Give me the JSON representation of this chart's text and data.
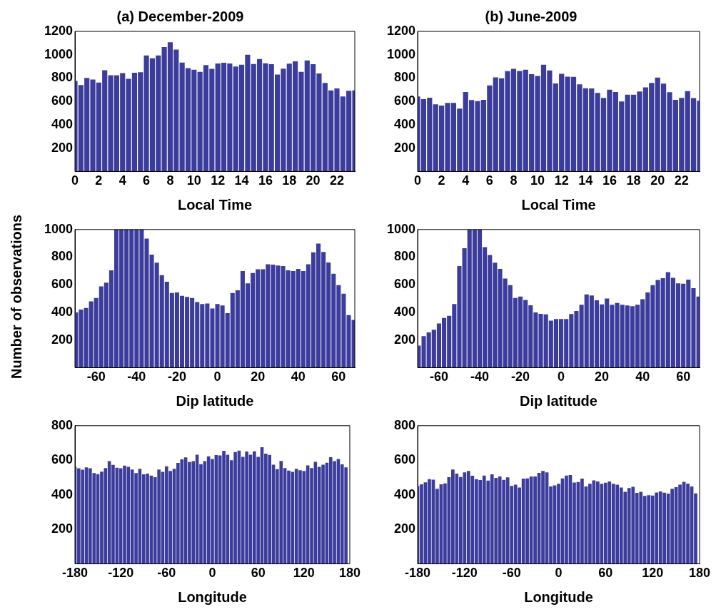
{
  "chart_data": [
    {
      "type": "bar",
      "title": "(a) December-2009",
      "xlabel": "Local Time",
      "color": "#3c3c9c",
      "xlim": [
        0,
        23.5
      ],
      "xticks": [
        0,
        2,
        4,
        6,
        8,
        10,
        12,
        14,
        16,
        18,
        20,
        22
      ],
      "ylim": [
        0,
        1200
      ],
      "yticks": [
        200,
        400,
        600,
        800,
        1000,
        1200
      ],
      "x": [
        0,
        0.5,
        1,
        1.5,
        2,
        2.5,
        3,
        3.5,
        4,
        4.5,
        5,
        5.5,
        6,
        6.5,
        7,
        7.5,
        8,
        8.5,
        9,
        9.5,
        10,
        10.5,
        11,
        11.5,
        12,
        12.5,
        13,
        13.5,
        14,
        14.5,
        15,
        15.5,
        16,
        16.5,
        17,
        17.5,
        18,
        18.5,
        19,
        19.5,
        20,
        20.5,
        21,
        21.5,
        22,
        22.5,
        23,
        23.5
      ],
      "values": [
        775,
        740,
        802,
        788,
        762,
        867,
        824,
        824,
        842,
        794,
        845,
        850,
        994,
        970,
        994,
        1065,
        1107,
        1044,
        933,
        885,
        871,
        853,
        911,
        879,
        925,
        931,
        925,
        899,
        915,
        1000,
        921,
        964,
        927,
        919,
        830,
        881,
        923,
        943,
        853,
        951,
        919,
        840,
        758,
        695,
        711,
        642,
        691,
        695
      ]
    },
    {
      "type": "bar",
      "title": "(b) June-2009",
      "xlabel": "Local Time",
      "color": "#3c3c9c",
      "xlim": [
        0,
        23.5
      ],
      "xticks": [
        0,
        2,
        4,
        6,
        8,
        10,
        12,
        14,
        16,
        18,
        20,
        22
      ],
      "ylim": [
        0,
        1200
      ],
      "yticks": [
        200,
        400,
        600,
        800,
        1000,
        1200
      ],
      "x": [
        0,
        0.5,
        1,
        1.5,
        2,
        2.5,
        3,
        3.5,
        4,
        4.5,
        5,
        5.5,
        6,
        6.5,
        7,
        7.5,
        8,
        8.5,
        9,
        9.5,
        10,
        10.5,
        11,
        11.5,
        12,
        12.5,
        13,
        13.5,
        14,
        14.5,
        15,
        15.5,
        16,
        16.5,
        17,
        17.5,
        18,
        18.5,
        19,
        19.5,
        20,
        20.5,
        21,
        21.5,
        22,
        22.5,
        23,
        23.5
      ],
      "values": [
        642,
        620,
        632,
        576,
        564,
        588,
        588,
        539,
        681,
        612,
        602,
        614,
        737,
        806,
        798,
        859,
        879,
        861,
        871,
        834,
        818,
        915,
        865,
        754,
        836,
        812,
        810,
        747,
        713,
        711,
        673,
        630,
        701,
        681,
        600,
        657,
        657,
        685,
        721,
        758,
        804,
        752,
        679,
        614,
        630,
        689,
        628,
        606
      ]
    },
    {
      "type": "bar",
      "xlabel": "Dip latitude",
      "ylabel": "Number of observations",
      "color": "#3c3c9c",
      "xlim": [
        -70.5,
        68
      ],
      "xticks": [
        -60,
        -40,
        -20,
        0,
        20,
        40,
        60
      ],
      "ylim": [
        0,
        1000
      ],
      "yticks": [
        200,
        400,
        600,
        800,
        1000
      ],
      "x": [
        -70,
        -67.5,
        -65,
        -62.5,
        -60,
        -57.5,
        -55,
        -52.5,
        -50,
        -47.5,
        -45,
        -42.5,
        -40,
        -37.5,
        -35,
        -32.5,
        -30,
        -27.5,
        -25,
        -22.5,
        -20,
        -17.5,
        -15,
        -12.5,
        -10,
        -7.5,
        -5,
        -2.5,
        0,
        2.5,
        5,
        7.5,
        10,
        12.5,
        15,
        17.5,
        20,
        22.5,
        25,
        27.5,
        30,
        32.5,
        35,
        37.5,
        40,
        42.5,
        45,
        47.5,
        50,
        52.5,
        55,
        57.5,
        60,
        62.5,
        65,
        67.5
      ],
      "values": [
        400,
        420,
        432,
        480,
        505,
        588,
        615,
        705,
        1000,
        1000,
        1000,
        1000,
        1000,
        1000,
        935,
        818,
        760,
        670,
        622,
        540,
        545,
        520,
        512,
        505,
        475,
        460,
        465,
        428,
        460,
        450,
        395,
        540,
        560,
        700,
        610,
        685,
        712,
        712,
        748,
        746,
        740,
        735,
        705,
        700,
        715,
        700,
        748,
        835,
        898,
        838,
        762,
        680,
        598,
        535,
        380,
        345
      ]
    },
    {
      "type": "bar",
      "xlabel": "Dip latitude",
      "color": "#3c3c9c",
      "xlim": [
        -70.5,
        68
      ],
      "xticks": [
        -60,
        -40,
        -20,
        0,
        20,
        40,
        60
      ],
      "ylim": [
        0,
        1000
      ],
      "yticks": [
        200,
        400,
        600,
        800,
        1000
      ],
      "x": [
        -70,
        -67.5,
        -65,
        -62.5,
        -60,
        -57.5,
        -55,
        -52.5,
        -50,
        -47.5,
        -45,
        -42.5,
        -40,
        -37.5,
        -35,
        -32.5,
        -30,
        -27.5,
        -25,
        -22.5,
        -20,
        -17.5,
        -15,
        -12.5,
        -10,
        -7.5,
        -5,
        -2.5,
        0,
        2.5,
        5,
        7.5,
        10,
        12.5,
        15,
        17.5,
        20,
        22.5,
        25,
        27.5,
        30,
        32.5,
        35,
        37.5,
        40,
        42.5,
        45,
        47.5,
        50,
        52.5,
        55,
        57.5,
        60,
        62.5,
        65,
        67.5
      ],
      "values": [
        160,
        228,
        255,
        275,
        320,
        360,
        375,
        460,
        735,
        865,
        1000,
        1000,
        1000,
        872,
        815,
        760,
        715,
        645,
        597,
        505,
        515,
        490,
        452,
        400,
        390,
        385,
        340,
        352,
        352,
        352,
        388,
        410,
        455,
        530,
        522,
        488,
        458,
        500,
        455,
        468,
        455,
        450,
        445,
        455,
        495,
        545,
        598,
        635,
        648,
        692,
        650,
        610,
        608,
        638,
        575,
        515
      ]
    },
    {
      "type": "bar",
      "xlabel": "Longitude",
      "color": "#3c3c9c",
      "xlim": [
        -180,
        180
      ],
      "xticks": [
        -180,
        -120,
        -60,
        0,
        60,
        120,
        180
      ],
      "ylim": [
        0,
        800
      ],
      "yticks": [
        200,
        400,
        600,
        800
      ],
      "x": [
        -180,
        -175,
        -170,
        -165,
        -160,
        -155,
        -150,
        -145,
        -140,
        -135,
        -130,
        -125,
        -120,
        -115,
        -110,
        -105,
        -100,
        -95,
        -90,
        -85,
        -80,
        -75,
        -70,
        -65,
        -60,
        -55,
        -50,
        -45,
        -40,
        -35,
        -30,
        -25,
        -20,
        -15,
        -10,
        -5,
        0,
        5,
        10,
        15,
        20,
        25,
        30,
        35,
        40,
        45,
        50,
        55,
        60,
        65,
        70,
        75,
        80,
        85,
        90,
        95,
        100,
        105,
        110,
        115,
        120,
        125,
        130,
        135,
        140,
        145,
        150,
        155,
        160,
        165,
        170,
        175
      ],
      "values": [
        562,
        553,
        545,
        558,
        553,
        525,
        519,
        534,
        554,
        595,
        573,
        556,
        553,
        569,
        562,
        546,
        525,
        550,
        518,
        522,
        511,
        502,
        546,
        533,
        565,
        538,
        550,
        584,
        605,
        616,
        589,
        595,
        632,
        577,
        595,
        623,
        607,
        630,
        628,
        655,
        632,
        600,
        647,
        656,
        619,
        650,
        632,
        651,
        619,
        675,
        638,
        631,
        574,
        548,
        596,
        554,
        540,
        533,
        550,
        542,
        538,
        570,
        554,
        591,
        562,
        574,
        585,
        617,
        595,
        607,
        576,
        558
      ]
    },
    {
      "type": "bar",
      "xlabel": "Longitude",
      "color": "#3c3c9c",
      "xlim": [
        -180,
        180
      ],
      "xticks": [
        -180,
        -120,
        -60,
        0,
        60,
        120,
        180
      ],
      "ylim": [
        0,
        800
      ],
      "yticks": [
        200,
        400,
        600,
        800
      ],
      "x": [
        -180,
        -175,
        -170,
        -165,
        -160,
        -155,
        -150,
        -145,
        -140,
        -135,
        -130,
        -125,
        -120,
        -115,
        -110,
        -105,
        -100,
        -95,
        -90,
        -85,
        -80,
        -75,
        -70,
        -65,
        -60,
        -55,
        -50,
        -45,
        -40,
        -35,
        -30,
        -25,
        -20,
        -15,
        -10,
        -5,
        0,
        5,
        10,
        15,
        20,
        25,
        30,
        35,
        40,
        45,
        50,
        55,
        60,
        65,
        70,
        75,
        80,
        85,
        90,
        95,
        100,
        105,
        110,
        115,
        120,
        125,
        130,
        135,
        140,
        145,
        150,
        155,
        160,
        165,
        170,
        175
      ],
      "values": [
        451,
        460,
        472,
        490,
        487,
        435,
        460,
        466,
        502,
        546,
        522,
        503,
        530,
        538,
        510,
        490,
        485,
        511,
        482,
        518,
        498,
        506,
        486,
        501,
        451,
        458,
        442,
        493,
        494,
        506,
        506,
        526,
        538,
        530,
        448,
        454,
        463,
        494,
        511,
        514,
        471,
        474,
        493,
        448,
        463,
        483,
        477,
        463,
        470,
        477,
        463,
        458,
        442,
        417,
        439,
        446,
        411,
        417,
        393,
        397,
        395,
        413,
        419,
        412,
        407,
        435,
        444,
        458,
        475,
        464,
        448,
        408
      ]
    }
  ]
}
